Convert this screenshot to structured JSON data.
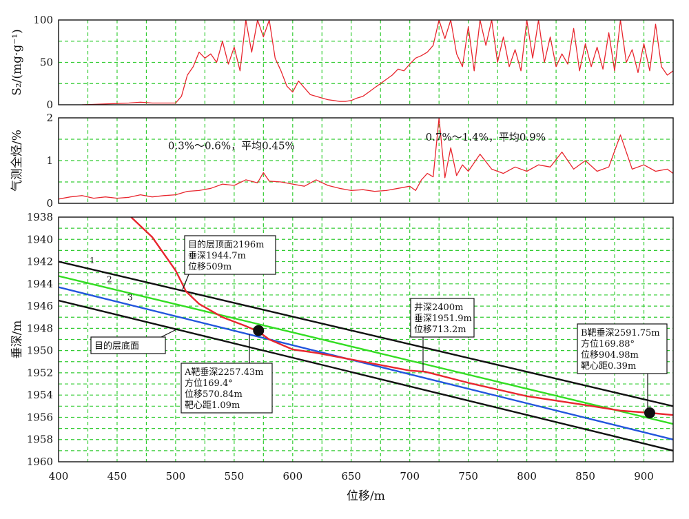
{
  "chart_data": [
    {
      "type": "line",
      "ylabel": "S₂/(mg·g⁻¹)",
      "xlim": [
        400,
        925
      ],
      "ylim": [
        0,
        100
      ],
      "yticks": [
        0,
        50,
        100
      ],
      "grid": true,
      "series": [
        {
          "color": "#e8262e",
          "x": [
            420,
            440,
            460,
            470,
            480,
            490,
            500,
            505,
            510,
            515,
            520,
            525,
            530,
            535,
            540,
            545,
            550,
            555,
            560,
            565,
            570,
            575,
            580,
            585,
            590,
            595,
            600,
            605,
            610,
            615,
            620,
            625,
            630,
            635,
            640,
            645,
            650,
            655,
            660,
            665,
            670,
            675,
            680,
            685,
            690,
            695,
            700,
            705,
            710,
            715,
            720,
            725,
            730,
            735,
            740,
            745,
            750,
            755,
            760,
            765,
            770,
            775,
            780,
            785,
            790,
            795,
            800,
            805,
            810,
            815,
            820,
            825,
            830,
            835,
            840,
            845,
            850,
            855,
            860,
            865,
            870,
            875,
            880,
            885,
            890,
            895,
            900,
            905,
            910,
            915,
            920,
            925
          ],
          "y": [
            0,
            1,
            2,
            3,
            2,
            2,
            2,
            10,
            35,
            45,
            62,
            55,
            60,
            50,
            75,
            48,
            68,
            40,
            100,
            62,
            100,
            80,
            100,
            55,
            40,
            22,
            15,
            28,
            20,
            12,
            10,
            8,
            6,
            5,
            4,
            4,
            5,
            8,
            10,
            15,
            20,
            25,
            30,
            35,
            42,
            40,
            48,
            55,
            58,
            62,
            70,
            100,
            78,
            100,
            60,
            45,
            92,
            40,
            100,
            70,
            100,
            50,
            80,
            45,
            65,
            40,
            100,
            55,
            100,
            50,
            80,
            45,
            60,
            48,
            90,
            40,
            72,
            45,
            68,
            42,
            85,
            40,
            100,
            50,
            65,
            38,
            72,
            40,
            95,
            45,
            35,
            40
          ]
        }
      ]
    },
    {
      "type": "line",
      "ylabel": "气测全烃/%",
      "xlim": [
        400,
        925
      ],
      "ylim": [
        0,
        2
      ],
      "yticks": [
        0,
        1,
        2
      ],
      "grid": true,
      "annotations": [
        {
          "text": "0.3%～0.6%，平均0.45%",
          "x": 510,
          "y": 1.35
        },
        {
          "text": "0.7%～1.4%，平均0.9%",
          "x": 730,
          "y": 1.55
        }
      ],
      "series": [
        {
          "color": "#e8262e",
          "x": [
            400,
            410,
            420,
            430,
            440,
            450,
            460,
            470,
            480,
            490,
            500,
            510,
            520,
            530,
            540,
            550,
            560,
            570,
            575,
            580,
            590,
            600,
            610,
            620,
            630,
            640,
            650,
            660,
            670,
            680,
            690,
            700,
            705,
            710,
            715,
            720,
            725,
            730,
            735,
            740,
            745,
            750,
            760,
            770,
            780,
            790,
            800,
            810,
            820,
            830,
            840,
            850,
            860,
            870,
            880,
            890,
            900,
            910,
            920,
            925
          ],
          "y": [
            0.1,
            0.15,
            0.18,
            0.12,
            0.15,
            0.12,
            0.14,
            0.2,
            0.15,
            0.18,
            0.2,
            0.28,
            0.3,
            0.35,
            0.45,
            0.42,
            0.55,
            0.48,
            0.72,
            0.52,
            0.5,
            0.45,
            0.4,
            0.55,
            0.42,
            0.35,
            0.3,
            0.32,
            0.28,
            0.3,
            0.35,
            0.4,
            0.3,
            0.55,
            0.7,
            0.62,
            2.0,
            0.6,
            1.3,
            0.65,
            0.9,
            0.75,
            1.15,
            0.8,
            0.7,
            0.85,
            0.75,
            0.9,
            0.85,
            1.2,
            0.8,
            1.0,
            0.75,
            0.85,
            1.6,
            0.8,
            0.9,
            0.75,
            0.8,
            0.7
          ]
        }
      ]
    },
    {
      "type": "line",
      "xlabel": "位移/m",
      "ylabel": "垂深/m",
      "xlim": [
        400,
        925
      ],
      "ylim": [
        1960,
        1938
      ],
      "xticks": [
        400,
        450,
        500,
        550,
        600,
        650,
        700,
        750,
        800,
        850,
        900
      ],
      "yticks": [
        1938,
        1940,
        1942,
        1944,
        1946,
        1948,
        1950,
        1952,
        1954,
        1956,
        1958,
        1960
      ],
      "grid": true,
      "series": [
        {
          "name": "1",
          "color": "#111111",
          "x": [
            400,
            925
          ],
          "y": [
            1942.0,
            1955.0
          ]
        },
        {
          "name": "2",
          "color": "#33dd22",
          "x": [
            400,
            925
          ],
          "y": [
            1943.3,
            1956.6
          ]
        },
        {
          "name": "3",
          "color": "#2255dd",
          "x": [
            400,
            925
          ],
          "y": [
            1944.3,
            1958.0
          ]
        },
        {
          "color": "#111111",
          "x": [
            400,
            925
          ],
          "y": [
            1945.5,
            1959.0
          ]
        },
        {
          "color": "#e8262e",
          "x": [
            462,
            480,
            500,
            509,
            520,
            540,
            560,
            570.84,
            580,
            600,
            620,
            650,
            700,
            713.2,
            750,
            800,
            850,
            880,
            904.98,
            925
          ],
          "y": [
            1938,
            1939.8,
            1942.8,
            1944.7,
            1945.8,
            1947.0,
            1947.8,
            1948.3,
            1949.0,
            1949.9,
            1950.2,
            1950.8,
            1951.8,
            1951.9,
            1952.9,
            1954.1,
            1954.9,
            1955.4,
            1955.6,
            1955.8
          ]
        }
      ],
      "points": [
        {
          "x": 570.84,
          "y": 1948.2
        },
        {
          "x": 904.98,
          "y": 1955.6
        }
      ],
      "annotations": [
        {
          "lines": [
            "目的层顶面2196m",
            "垂深1944.7m",
            "位移509m"
          ],
          "target": [
            509,
            1944.7
          ]
        },
        {
          "lines": [
            "目的层底面"
          ],
          "target": [
            505,
            1948.4
          ]
        },
        {
          "lines": [
            "井深2400m",
            "垂深1951.9m",
            "位移713.2m"
          ],
          "target": [
            713.2,
            1951.9
          ]
        },
        {
          "lines": [
            "A靶垂深2257.43m",
            "方位169.4°",
            "位移570.84m",
            "靶心距1.09m"
          ],
          "target": [
            570.84,
            1948.2
          ]
        },
        {
          "lines": [
            "B靶垂深2591.75m",
            "方位169.88°",
            "位移904.98m",
            "靶心距0.39m"
          ],
          "target": [
            904.98,
            1955.6
          ]
        }
      ]
    }
  ]
}
